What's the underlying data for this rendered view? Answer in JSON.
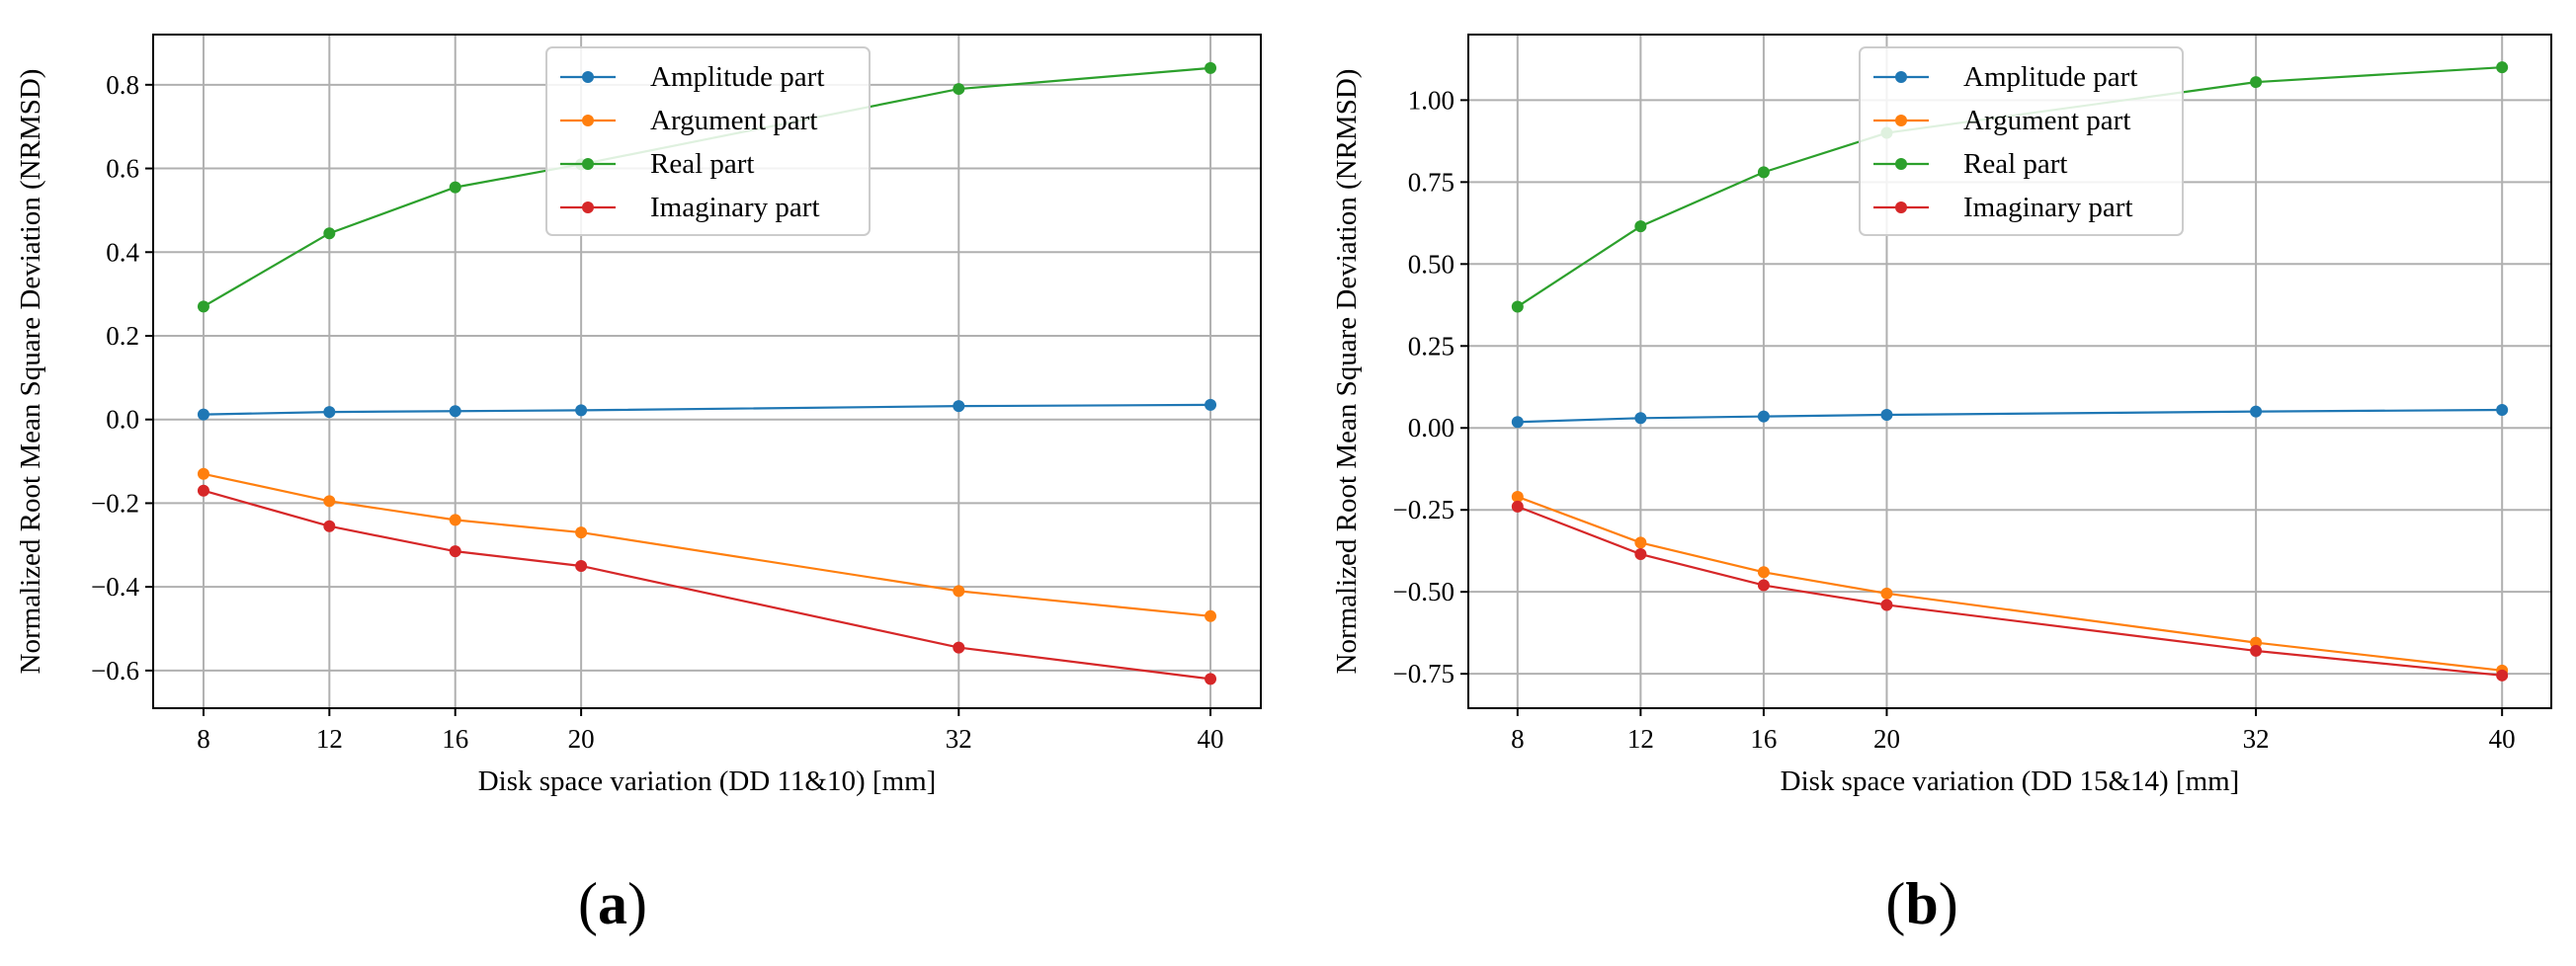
{
  "colors": {
    "amplitude": "#1f77b4",
    "argument": "#ff7f0e",
    "real": "#2ca02c",
    "imaginary": "#d62728",
    "grid": "#b0b0b0",
    "axis": "#000000"
  },
  "chart_data": [
    {
      "type": "line",
      "panel_label": {
        "open": "(",
        "letter": "a",
        "close": ")"
      },
      "xlabel": "Disk space variation (DD 11&10) [mm]",
      "ylabel": "Normalized Root Mean Square Deviation (NRMSD)",
      "x": [
        8,
        12,
        16,
        20,
        32,
        40
      ],
      "xticks": [
        8,
        12,
        16,
        20,
        32,
        40
      ],
      "xtick_labels": [
        "8",
        "12",
        "16",
        "20",
        "32",
        "40"
      ],
      "xlim": [
        6.4,
        41.6
      ],
      "ylim": [
        -0.69,
        0.92
      ],
      "yticks": [
        -0.6,
        -0.4,
        -0.2,
        0.0,
        0.2,
        0.4,
        0.6,
        0.8
      ],
      "ytick_labels": [
        "−0.6",
        "−0.4",
        "−0.2",
        "0.0",
        "0.2",
        "0.4",
        "0.6",
        "0.8"
      ],
      "grid": true,
      "legend_position": "upper-center",
      "series": [
        {
          "key": "amplitude",
          "name": "Amplitude part",
          "values": [
            0.012,
            0.018,
            0.02,
            0.022,
            0.032,
            0.035
          ]
        },
        {
          "key": "argument",
          "name": "Argument part",
          "values": [
            -0.13,
            -0.195,
            -0.24,
            -0.27,
            -0.41,
            -0.47
          ]
        },
        {
          "key": "real",
          "name": "Real part",
          "values": [
            0.27,
            0.445,
            0.555,
            0.61,
            0.79,
            0.84
          ]
        },
        {
          "key": "imaginary",
          "name": "Imaginary part",
          "values": [
            -0.17,
            -0.255,
            -0.315,
            -0.35,
            -0.545,
            -0.62
          ]
        }
      ]
    },
    {
      "type": "line",
      "panel_label": {
        "open": "(",
        "letter": "b",
        "close": ")"
      },
      "xlabel": "Disk space variation (DD 15&14) [mm]",
      "ylabel": "Normalized Root Mean Square Deviation (NRMSD)",
      "x": [
        8,
        12,
        16,
        20,
        32,
        40
      ],
      "xticks": [
        8,
        12,
        16,
        20,
        32,
        40
      ],
      "xtick_labels": [
        "8",
        "12",
        "16",
        "20",
        "32",
        "40"
      ],
      "xlim": [
        6.4,
        41.6
      ],
      "ylim": [
        -0.855,
        1.2
      ],
      "yticks": [
        -0.75,
        -0.5,
        -0.25,
        0.0,
        0.25,
        0.5,
        0.75,
        1.0
      ],
      "ytick_labels": [
        "−0.75",
        "−0.50",
        "−0.25",
        "0.00",
        "0.25",
        "0.50",
        "0.75",
        "1.00"
      ],
      "grid": true,
      "legend_position": "upper-center",
      "series": [
        {
          "key": "amplitude",
          "name": "Amplitude part",
          "values": [
            0.018,
            0.03,
            0.035,
            0.04,
            0.05,
            0.055
          ]
        },
        {
          "key": "argument",
          "name": "Argument part",
          "values": [
            -0.21,
            -0.35,
            -0.44,
            -0.505,
            -0.655,
            -0.74
          ]
        },
        {
          "key": "real",
          "name": "Real part",
          "values": [
            0.37,
            0.615,
            0.78,
            0.9,
            1.055,
            1.1
          ]
        },
        {
          "key": "imaginary",
          "name": "Imaginary part",
          "values": [
            -0.24,
            -0.385,
            -0.48,
            -0.54,
            -0.68,
            -0.755
          ]
        }
      ]
    }
  ]
}
